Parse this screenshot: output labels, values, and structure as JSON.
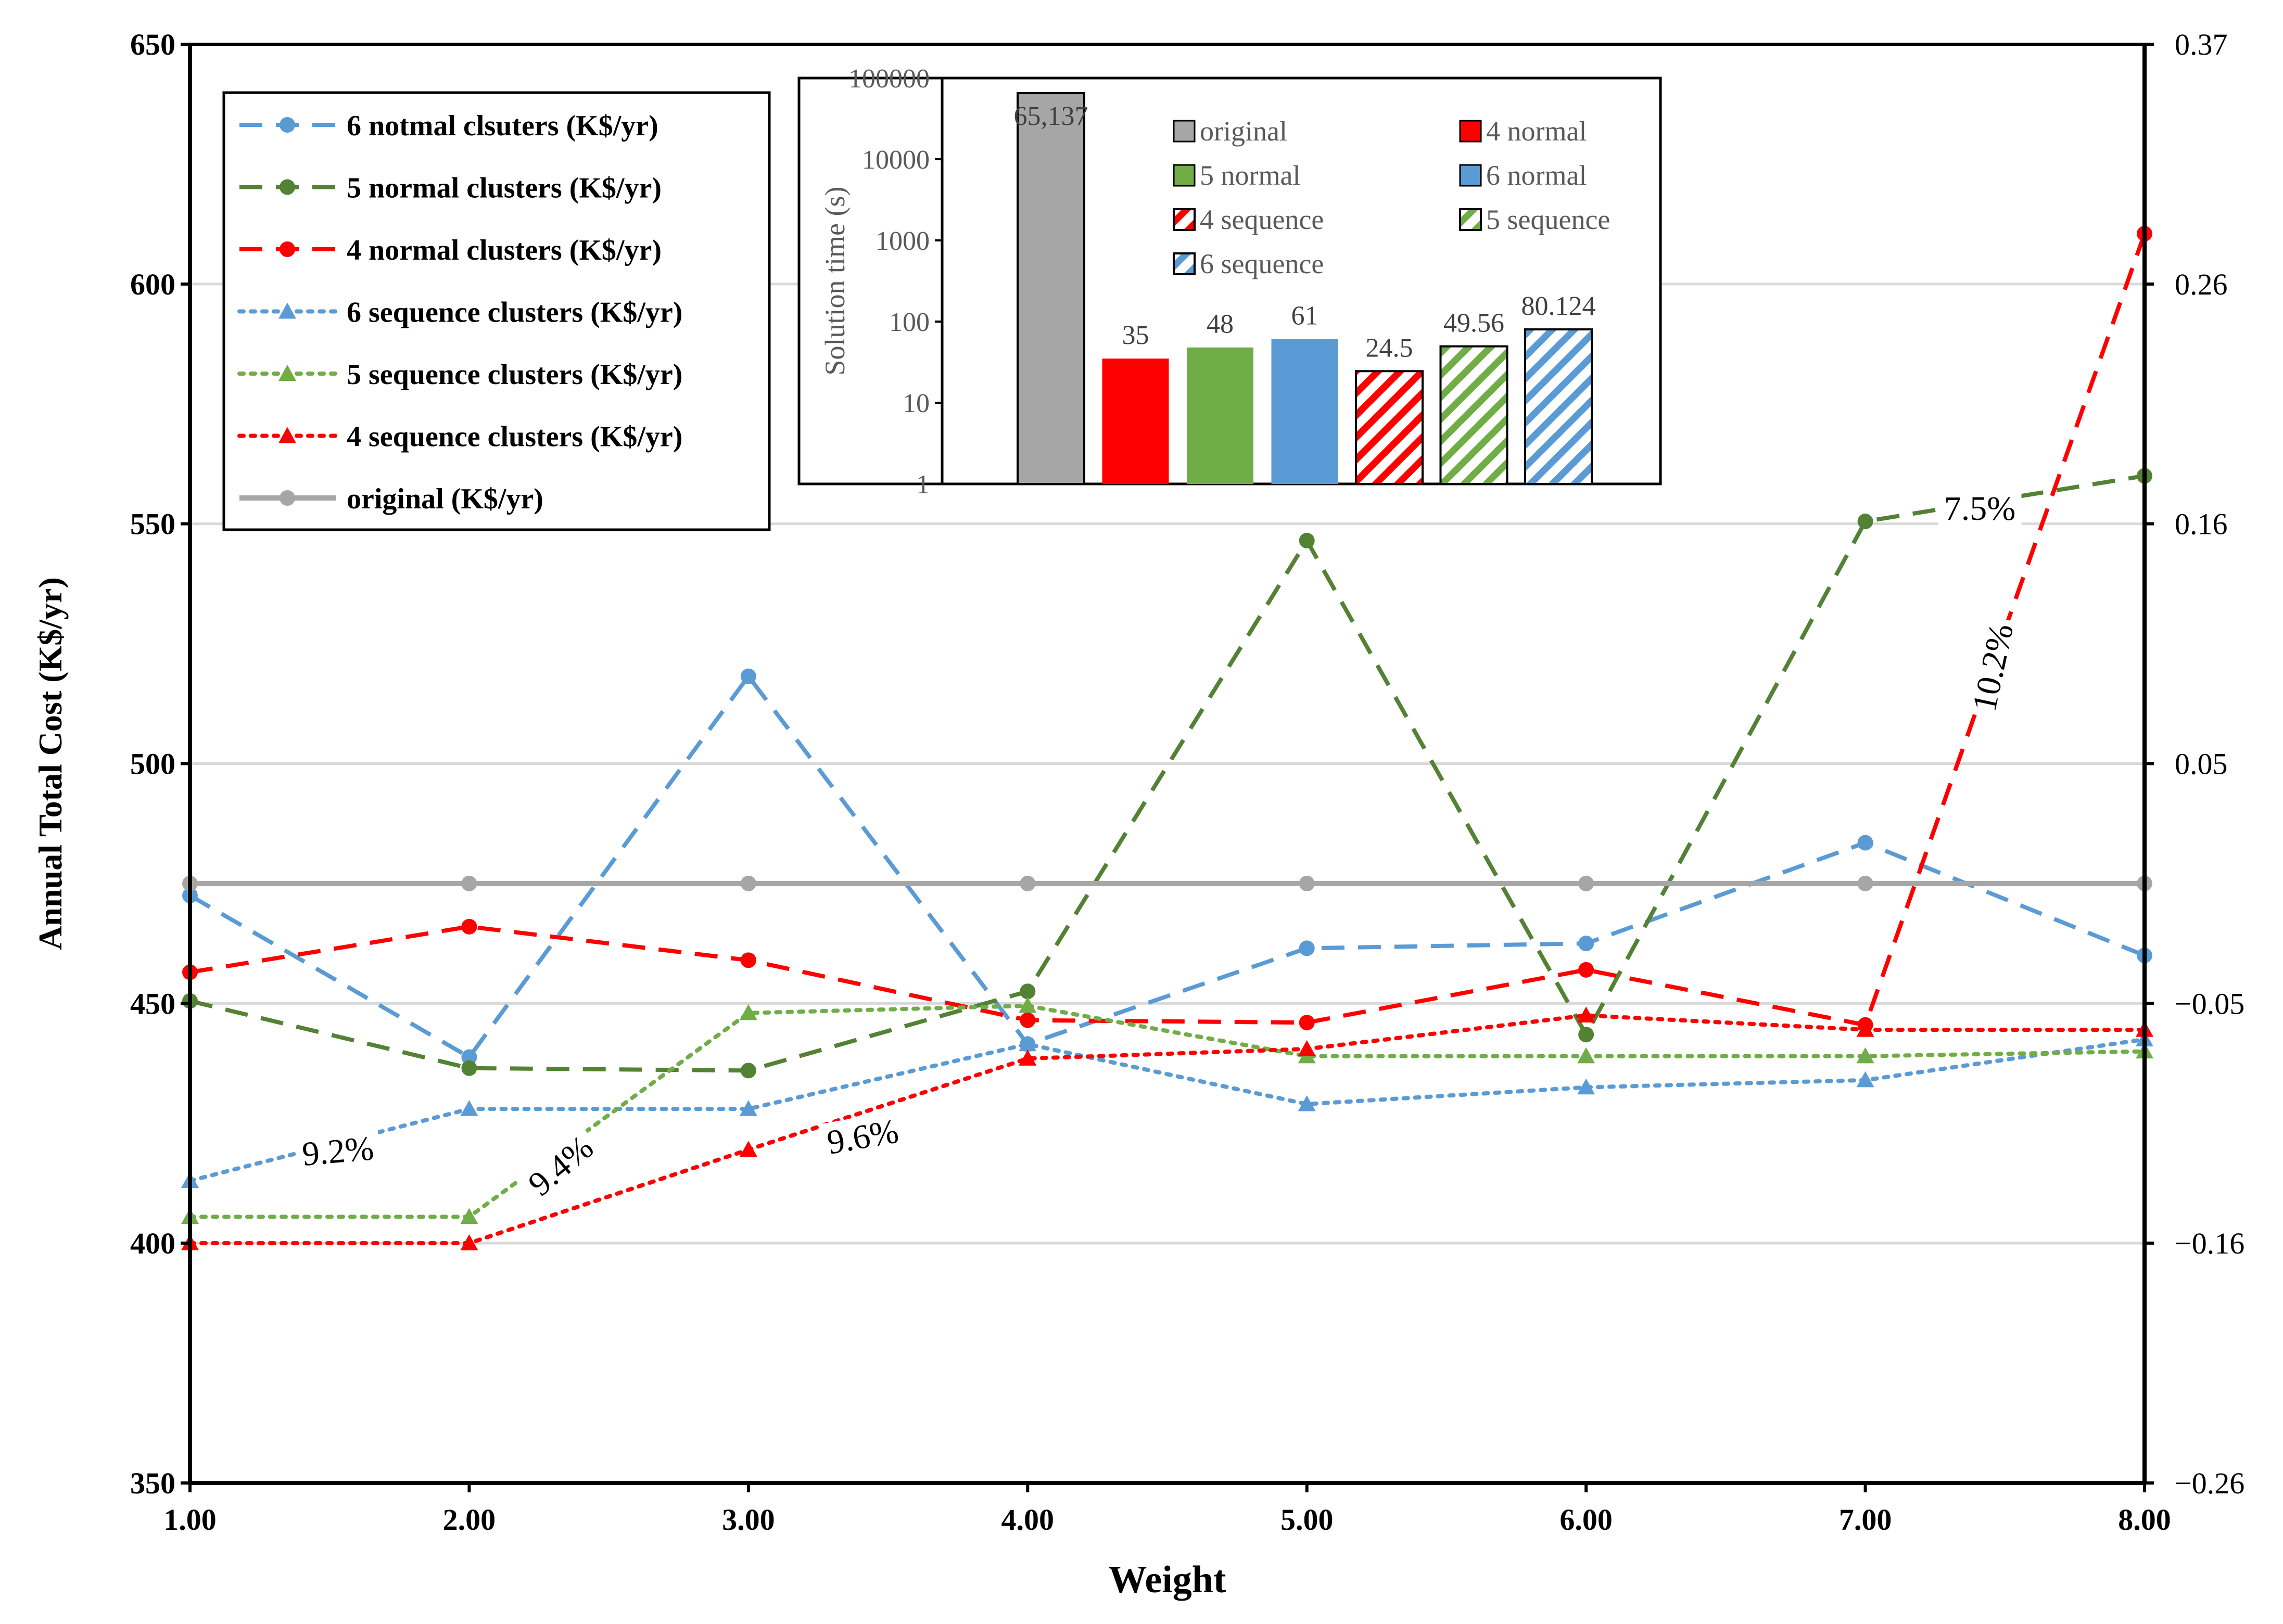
{
  "chart_data": [
    {
      "type": "line",
      "title": "",
      "xlabel": "Weight",
      "ylabel": "Annual Total Cost (K$/yr)",
      "xlim": [
        1,
        8
      ],
      "ylim": [
        350,
        650
      ],
      "y2lim": [
        -0.26,
        0.37
      ],
      "x": [
        1,
        2,
        3,
        4,
        5,
        6,
        7,
        8
      ],
      "x_tick_labels": [
        "1.00",
        "2.00",
        "3.00",
        "4.00",
        "5.00",
        "6.00",
        "7.00",
        "8.00"
      ],
      "y_ticks": [
        350,
        400,
        450,
        500,
        550,
        600,
        650
      ],
      "y_tick_labels": [
        "350",
        "400",
        "450",
        "500",
        "550",
        "600",
        "650"
      ],
      "y2_tick_labels": [
        "−0.26",
        "−0.16",
        "−0.05",
        "0.05",
        "0.16",
        "0.26",
        "0.37"
      ],
      "series": [
        {
          "name": "6 notmal clsuters (K$/yr)",
          "color": "#5B9BD5",
          "dash": "dashed",
          "marker": "circle",
          "values": [
            472.5,
            438.8,
            518.2,
            441.5,
            461.5,
            462.5,
            483.5,
            460.0
          ]
        },
        {
          "name": "5 normal clusters (K$/yr)",
          "color": "#548235",
          "dash": "dashed",
          "marker": "circle",
          "values": [
            450.5,
            436.5,
            436.0,
            452.5,
            546.5,
            443.5,
            550.5,
            560.0
          ]
        },
        {
          "name": "4 normal clusters (K$/yr)",
          "color": "#FF0000",
          "dash": "dashed",
          "marker": "circle",
          "values": [
            456.5,
            466.0,
            459.0,
            446.5,
            446.0,
            457.0,
            445.5,
            610.5
          ]
        },
        {
          "name": "6 sequence clusters (K$/yr)",
          "color": "#5B9BD5",
          "dash": "dotted",
          "marker": "triangle",
          "values": [
            413.0,
            428.0,
            428.0,
            441.5,
            429.0,
            432.5,
            434.0,
            442.5
          ]
        },
        {
          "name": "5 sequence clusters (K$/yr)",
          "color": "#70AD47",
          "dash": "dotted",
          "marker": "triangle",
          "values": [
            405.5,
            405.5,
            448.0,
            449.5,
            439.0,
            439.0,
            439.0,
            440.0
          ]
        },
        {
          "name": "4 sequence clusters (K$/yr)",
          "color": "#FF0000",
          "dash": "dotted",
          "marker": "triangle",
          "values": [
            400.0,
            400.0,
            419.5,
            438.5,
            440.5,
            447.5,
            444.5,
            444.5
          ]
        },
        {
          "name": "original  (K$/yr)",
          "color": "#A6A6A6",
          "dash": "solid",
          "marker": "circle",
          "values": [
            475.0,
            475.0,
            475.0,
            475.0,
            475.0,
            475.0,
            475.0,
            475.0
          ]
        }
      ],
      "annotations": [
        {
          "text": "9.2%",
          "x": 1.53,
          "y": 419,
          "rotate": -5
        },
        {
          "text": "9.4%",
          "x": 2.33,
          "y": 416,
          "rotate": -40
        },
        {
          "text": "9.6%",
          "x": 3.41,
          "y": 422,
          "rotate": -10
        },
        {
          "text": "7.5%",
          "x": 7.41,
          "y": 553,
          "rotate": 0
        },
        {
          "text": "10.2%",
          "x": 7.46,
          "y": 520,
          "rotate": -78
        }
      ],
      "legend_position": "top-left"
    },
    {
      "type": "bar",
      "title": "",
      "ylabel": "Solution time (s)",
      "yscale": "log",
      "ylim": [
        1,
        100000
      ],
      "y_tick_labels": [
        "1",
        "10",
        "100",
        "1000",
        "10000",
        "100000"
      ],
      "categories": [
        "original",
        "4 normal",
        "5 normal",
        "6 normal",
        "4 sequence",
        "5 sequence",
        "6 sequence"
      ],
      "values": [
        65137,
        35,
        48,
        61,
        24.5,
        49.56,
        80.124
      ],
      "value_labels": [
        "65,137",
        "35",
        "48",
        "61",
        "24.5",
        "49.56",
        "80.124"
      ],
      "colors": [
        "#A6A6A6",
        "#FF0000",
        "#70AD47",
        "#5B9BD5",
        "#FF0000",
        "#70AD47",
        "#5B9BD5"
      ],
      "patterns": [
        "solid",
        "solid",
        "solid",
        "solid",
        "hatched",
        "hatched",
        "hatched"
      ],
      "legend_position": "top-right"
    }
  ]
}
